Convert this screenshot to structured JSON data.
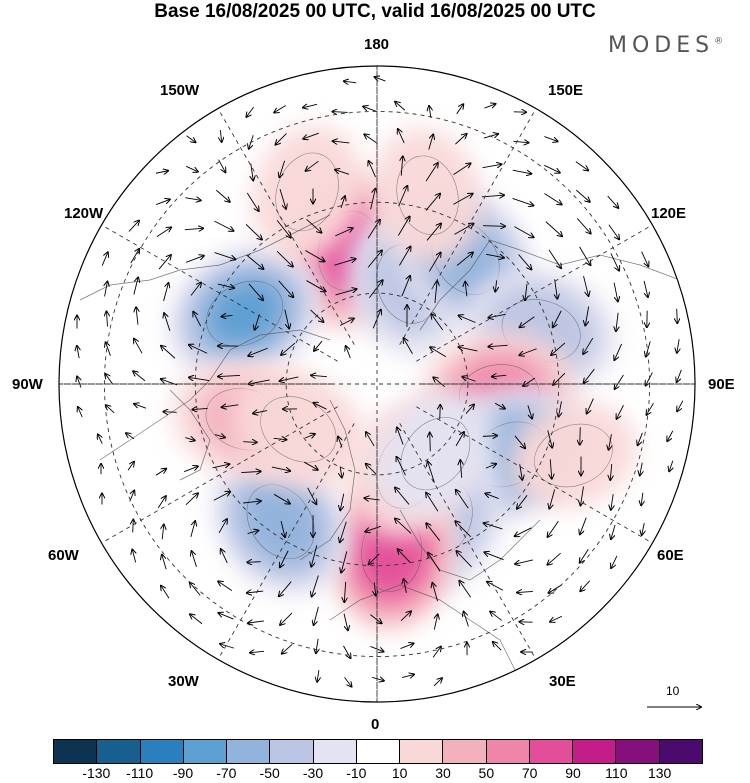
{
  "title": "Base 16/08/2025 00 UTC, valid 16/08/2025 00 UTC",
  "brand": "MODES",
  "brand_mark": "®",
  "longitude_labels": {
    "n180": "180",
    "w150": "150W",
    "e150": "150E",
    "w120": "120W",
    "e120": "120E",
    "w90": "90W",
    "e90": "90E",
    "w60": "60W",
    "e60": "60E",
    "w30": "30W",
    "e30": "30E",
    "s0": "0"
  },
  "reference_vector": {
    "value": "10"
  },
  "colorbar": {
    "colors": [
      "#0d3350",
      "#165f8f",
      "#2a7fbf",
      "#5b9fd3",
      "#91b3dc",
      "#bcc5e3",
      "#e4e3f2",
      "#ffffff",
      "#f9d8d8",
      "#f3b1bd",
      "#ef86aa",
      "#e34e9a",
      "#c41c8a",
      "#85107b",
      "#4a0a6e"
    ],
    "ticks": [
      "-130",
      "-110",
      "-90",
      "-70",
      "-50",
      "-30",
      "-10",
      "10",
      "30",
      "50",
      "70",
      "90",
      "110",
      "130"
    ]
  },
  "anomaly_cells": [
    {
      "lon": -168,
      "lat": 60,
      "value": 85
    },
    {
      "lon": -118,
      "lat": 57,
      "value": -80
    },
    {
      "lon": 163,
      "lat": 67,
      "value": -45
    },
    {
      "lon": 145,
      "lat": 56,
      "value": -65
    },
    {
      "lon": 108,
      "lat": 52,
      "value": -55
    },
    {
      "lon": 85,
      "lat": 63,
      "value": 65
    },
    {
      "lon": 62,
      "lat": 57,
      "value": -75
    },
    {
      "lon": 25,
      "lat": 57,
      "value": -55
    },
    {
      "lon": 5,
      "lat": 53,
      "value": 95
    },
    {
      "lon": -35,
      "lat": 53,
      "value": -70
    },
    {
      "lon": -75,
      "lat": 60,
      "value": 40
    },
    {
      "lon": -160,
      "lat": 45,
      "value": 25
    },
    {
      "lon": 70,
      "lat": 44,
      "value": 20
    },
    {
      "lon": 165,
      "lat": 47,
      "value": 25
    },
    {
      "lon": 20,
      "lat": 70,
      "value": 30
    },
    {
      "lon": -60,
      "lat": 70,
      "value": 30
    },
    {
      "lon": 40,
      "lat": 70,
      "value": -25
    }
  ]
}
